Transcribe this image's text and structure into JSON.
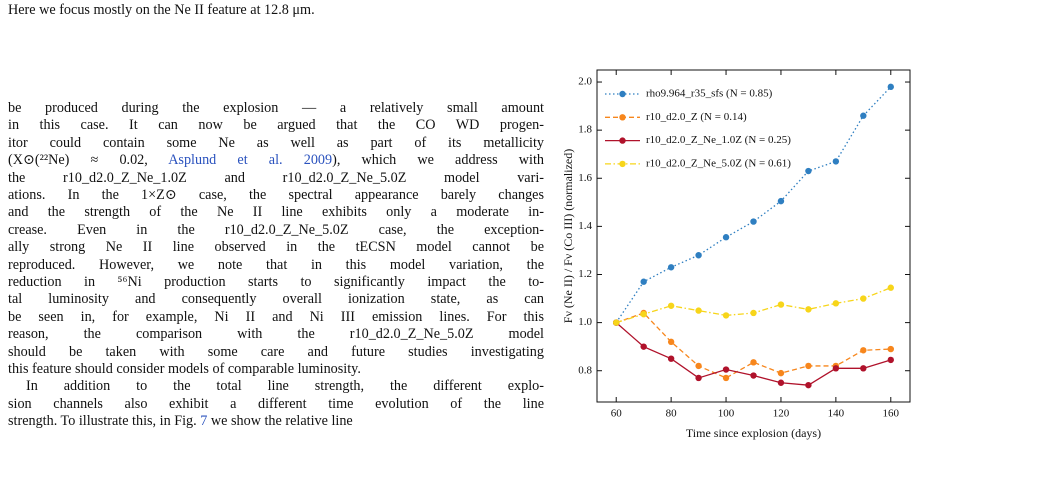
{
  "top_line": "Here we focus mostly on the Ne II feature at 12.8 μm.",
  "paragraphs": [
    {
      "lines": [
        [
          "be produced during the explosion — a relatively small amount"
        ],
        [
          "in this case. It can now be argued that the CO WD progen-"
        ],
        [
          "itor could contain some Ne as well as part of its metallicity"
        ],
        [
          "(X⊙(²²Ne) ≈ 0.02, ",
          {
            "link": "Asplund et al. 2009"
          },
          "), which we address with"
        ],
        [
          "the r10_d2.0_Z_Ne_1.0Z and r10_d2.0_Z_Ne_5.0Z model vari-"
        ],
        [
          "ations. In the 1×Z⊙ case, the spectral appearance barely changes"
        ],
        [
          "and the strength of the Ne II line exhibits only a moderate in-"
        ],
        [
          "crease. Even in the r10_d2.0_Z_Ne_5.0Z case, the exception-"
        ],
        [
          "ally strong Ne II line observed in the tECSN model cannot be"
        ],
        [
          "reproduced. However, we note that in this model variation, the"
        ],
        [
          "reduction in ⁵⁶Ni production starts to significantly impact the to-"
        ],
        [
          "tal luminosity and consequently overall ionization state, as can"
        ],
        [
          "be seen in, for example, Ni II and Ni III emission lines. For this"
        ],
        [
          "reason, the comparison with the r10_d2.0_Z_Ne_5.0Z model"
        ],
        [
          "should be taken with some care and future studies investigating"
        ],
        [
          "this feature should consider models of comparable luminosity."
        ]
      ]
    },
    {
      "lines": [
        [
          "In addition to the total line strength, the different explo-"
        ],
        [
          "sion channels also exhibit a different time evolution of the line"
        ],
        [
          "strength. To illustrate this, in Fig. ",
          {
            "link": "7"
          },
          " we show the relative line"
        ]
      ]
    }
  ],
  "chart_data": {
    "type": "line",
    "xlabel": "Time since explosion (days)",
    "ylabel": "Fν (Ne II) / Fν (Co III) (normalized)",
    "x": [
      60,
      70,
      80,
      90,
      100,
      110,
      120,
      130,
      140,
      150,
      160
    ],
    "series": [
      {
        "name": "rho9.964_r35_sfs (N = 0.85)",
        "color": "#2f7fc1",
        "linestyle": "dotted",
        "values": [
          1.0,
          1.17,
          1.23,
          1.28,
          1.355,
          1.42,
          1.505,
          1.63,
          1.67,
          1.86,
          1.98
        ]
      },
      {
        "name": "r10_d2.0_Z (N = 0.14)",
        "color": "#f7861c",
        "linestyle": "dashed",
        "values": [
          1.0,
          1.04,
          0.92,
          0.82,
          0.77,
          0.835,
          0.79,
          0.82,
          0.82,
          0.885,
          0.89
        ]
      },
      {
        "name": "r10_d2.0_Z_Ne_1.0Z (N = 0.25)",
        "color": "#b0122b",
        "linestyle": "solid",
        "values": [
          1.0,
          0.9,
          0.85,
          0.77,
          0.805,
          0.78,
          0.75,
          0.74,
          0.81,
          0.81,
          0.845
        ]
      },
      {
        "name": "r10_d2.0_Z_Ne_5.0Z (N = 0.61)",
        "color": "#f7d51a",
        "linestyle": "dashdot",
        "values": [
          1.0,
          1.035,
          1.07,
          1.05,
          1.03,
          1.04,
          1.075,
          1.055,
          1.08,
          1.1,
          1.145
        ]
      }
    ],
    "xlim": [
      53,
      167
    ],
    "xticks": [
      60,
      80,
      100,
      120,
      140,
      160
    ],
    "ylim": [
      0.67,
      2.05
    ],
    "yticks": [
      0.8,
      {
        "value": 1,
        "label": "1.0"
      },
      1.2,
      1.4,
      1.6,
      1.8,
      {
        "value": 2,
        "label": "2.0"
      }
    ],
    "legend": "upper-left",
    "grid": false
  }
}
